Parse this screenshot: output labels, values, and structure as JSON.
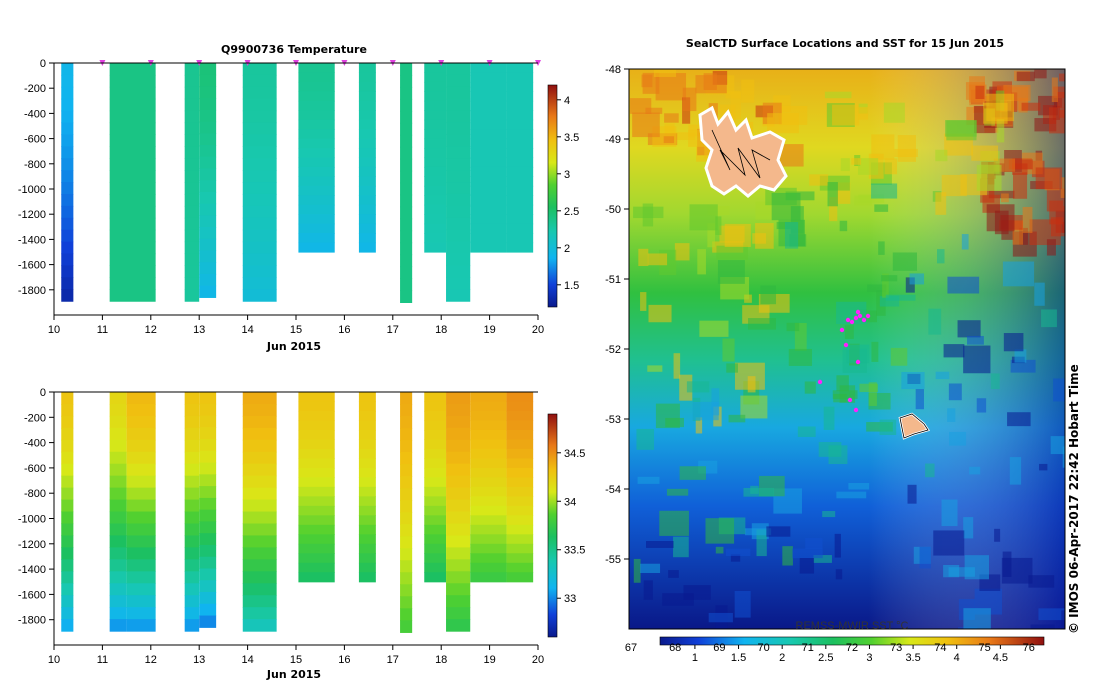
{
  "chart_data": [
    {
      "type": "heatmap",
      "title": "Q9900736  Temperature",
      "xlabel": "Jun 2015",
      "ylabel": "",
      "x_ticks": [
        "10",
        "11",
        "12",
        "13",
        "14",
        "15",
        "16",
        "17",
        "18",
        "19",
        "20"
      ],
      "y_ticks": [
        "0",
        "-200",
        "-400",
        "-600",
        "-800",
        "-1000",
        "-1200",
        "-1400",
        "-1600",
        "-1800"
      ],
      "xlim": [
        10,
        20
      ],
      "ylim": [
        -2000,
        0
      ],
      "colorbar_ticks": [
        "1.5",
        "2",
        "2.5",
        "3",
        "3.5",
        "4"
      ],
      "colorbar_range": [
        1.2,
        4.2
      ],
      "profile_markers": [
        11,
        12,
        13,
        14,
        15,
        16,
        17,
        18,
        19,
        20
      ],
      "profiles": [
        {
          "x0": 10.15,
          "x1": 10.4,
          "depth": -1890,
          "top": 1.9,
          "bottom": 1.3
        },
        {
          "x0": 11.15,
          "x1": 12.1,
          "depth": -1890,
          "top": 2.4,
          "bottom": 2.4
        },
        {
          "x0": 12.7,
          "x1": 13.0,
          "depth": -1890,
          "top": 2.35,
          "bottom": 2.3
        },
        {
          "x0": 13.0,
          "x1": 13.35,
          "depth": -1860,
          "top": 2.45,
          "bottom": 1.9
        },
        {
          "x0": 13.9,
          "x1": 14.6,
          "depth": -1890,
          "top": 2.3,
          "bottom": 2.0
        },
        {
          "x0": 15.05,
          "x1": 15.8,
          "depth": -1500,
          "top": 2.35,
          "bottom": 1.9
        },
        {
          "x0": 16.3,
          "x1": 16.65,
          "depth": -1500,
          "top": 2.3,
          "bottom": 1.9
        },
        {
          "x0": 17.15,
          "x1": 17.4,
          "depth": -1900,
          "top": 2.4,
          "bottom": 2.4
        },
        {
          "x0": 17.65,
          "x1": 18.1,
          "depth": -1500,
          "top": 2.3,
          "bottom": 2.2
        },
        {
          "x0": 18.1,
          "x1": 18.6,
          "depth": -1890,
          "top": 2.3,
          "bottom": 2.2
        },
        {
          "x0": 18.6,
          "x1": 19.35,
          "depth": -1500,
          "top": 2.2,
          "bottom": 2.2
        },
        {
          "x0": 19.35,
          "x1": 19.9,
          "depth": -1500,
          "top": 2.2,
          "bottom": 2.2
        }
      ]
    },
    {
      "type": "heatmap",
      "title": "",
      "xlabel": "Jun 2015",
      "ylabel": "",
      "x_ticks": [
        "10",
        "11",
        "12",
        "13",
        "14",
        "15",
        "16",
        "17",
        "18",
        "19",
        "20"
      ],
      "y_ticks": [
        "0",
        "-200",
        "-400",
        "-600",
        "-800",
        "-1000",
        "-1200",
        "-1400",
        "-1600",
        "-1800"
      ],
      "xlim": [
        10,
        20
      ],
      "ylim": [
        -2000,
        0
      ],
      "colorbar_ticks": [
        "33",
        "33.5",
        "34",
        "34.5"
      ],
      "colorbar_range": [
        32.6,
        34.9
      ],
      "profiles": [
        {
          "x0": 10.15,
          "x1": 10.4,
          "depth": -1890,
          "top": 34.3,
          "bottom": 33.05
        },
        {
          "x0": 11.15,
          "x1": 11.5,
          "depth": -1890,
          "top": 34.2,
          "bottom": 33.0
        },
        {
          "x0": 11.5,
          "x1": 12.1,
          "depth": -1890,
          "top": 34.35,
          "bottom": 33.0
        },
        {
          "x0": 12.7,
          "x1": 13.0,
          "depth": -1890,
          "top": 34.3,
          "bottom": 33.0
        },
        {
          "x0": 13.0,
          "x1": 13.35,
          "depth": -1860,
          "top": 34.3,
          "bottom": 32.95
        },
        {
          "x0": 13.9,
          "x1": 14.6,
          "depth": -1890,
          "top": 34.4,
          "bottom": 33.3
        },
        {
          "x0": 15.05,
          "x1": 15.8,
          "depth": -1500,
          "top": 34.3,
          "bottom": 33.6
        },
        {
          "x0": 16.3,
          "x1": 16.65,
          "depth": -1500,
          "top": 34.3,
          "bottom": 33.6
        },
        {
          "x0": 17.15,
          "x1": 17.4,
          "depth": -1900,
          "top": 34.4,
          "bottom": 33.8
        },
        {
          "x0": 17.65,
          "x1": 18.1,
          "depth": -1500,
          "top": 34.3,
          "bottom": 33.6
        },
        {
          "x0": 18.1,
          "x1": 18.6,
          "depth": -1890,
          "top": 34.45,
          "bottom": 33.7
        },
        {
          "x0": 18.6,
          "x1": 19.35,
          "depth": -1500,
          "top": 34.4,
          "bottom": 33.75
        },
        {
          "x0": 19.35,
          "x1": 19.9,
          "depth": -1500,
          "top": 34.5,
          "bottom": 33.8
        }
      ]
    },
    {
      "type": "heatmap",
      "title": "SealCTD Surface Locations and SST for 15 Jun 2015",
      "xlabel": "",
      "ylabel": "",
      "y_ticks": [
        "-48",
        "-49",
        "-50",
        "-51",
        "-52",
        "-53",
        "-54",
        "-55"
      ],
      "ylim": [
        -56,
        -48
      ],
      "colorbar_label": "REMSS-MWIR SST °C",
      "colorbar_ticks_top": [
        "67",
        "68",
        "69",
        "70",
        "71",
        "72",
        "73",
        "74",
        "75",
        "76"
      ],
      "colorbar_ticks_bottom": [
        "1",
        "1.5",
        "2",
        "2.5",
        "3",
        "3.5",
        "4",
        "4.5"
      ],
      "colorbar_range": [
        0.6,
        5.0
      ],
      "credit": "© IMOS 06-Apr-2017 22:42 Hobart Time"
    }
  ]
}
